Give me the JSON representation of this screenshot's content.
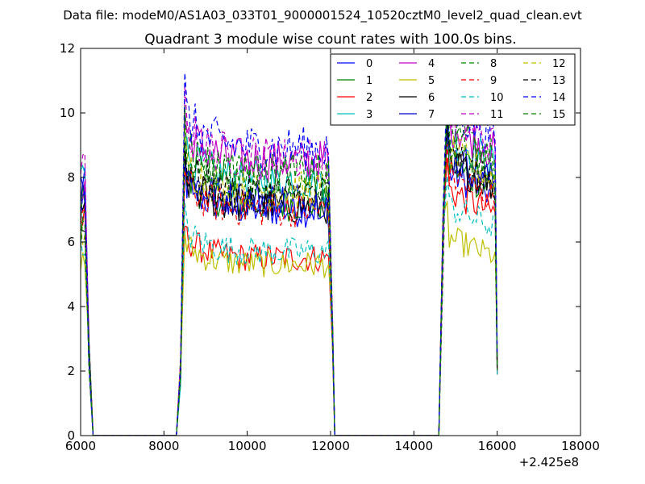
{
  "suptitle": "Data file: modeM0/AS1A03_033T01_9000001524_10520cztM0_level2_quad_clean.evt",
  "chart_data": {
    "type": "line",
    "title": "Quadrant 3 module wise count rates with 100.0s bins.",
    "xlabel": "",
    "ylabel": "",
    "x_offset_label": "+2.425e8",
    "xlim": [
      6000,
      18000
    ],
    "ylim": [
      0,
      12
    ],
    "xticks": [
      6000,
      8000,
      10000,
      12000,
      14000,
      16000,
      18000
    ],
    "yticks": [
      0,
      2,
      4,
      6,
      8,
      10,
      12
    ],
    "xtick_labels": [
      "6000",
      "8000",
      "10000",
      "12000",
      "14000",
      "16000",
      "18000"
    ],
    "ytick_labels": [
      "0",
      "2",
      "4",
      "6",
      "8",
      "10",
      "12"
    ],
    "grid": false,
    "legend_position": "top-right",
    "segments": [
      {
        "start": 6000,
        "end": 6100
      },
      {
        "start": 8500,
        "end": 12000
      },
      {
        "start": 14700,
        "end": 16000
      }
    ],
    "series": [
      {
        "name": "0",
        "color": "#0000ff",
        "dash": "solid",
        "levels": [
          8.2,
          7.0,
          8.3
        ]
      },
      {
        "name": "1",
        "color": "#008000",
        "dash": "solid",
        "levels": [
          7.5,
          7.2,
          8.5
        ]
      },
      {
        "name": "2",
        "color": "#ff0000",
        "dash": "solid",
        "levels": [
          6.9,
          5.5,
          7.7
        ]
      },
      {
        "name": "3",
        "color": "#00bfbf",
        "dash": "solid",
        "levels": [
          8.3,
          7.9,
          9.4
        ]
      },
      {
        "name": "4",
        "color": "#bf00bf",
        "dash": "solid",
        "levels": [
          8.0,
          8.5,
          9.8
        ]
      },
      {
        "name": "5",
        "color": "#bfbf00",
        "dash": "solid",
        "levels": [
          5.5,
          5.3,
          6.2
        ]
      },
      {
        "name": "6",
        "color": "#000000",
        "dash": "solid",
        "levels": [
          7.3,
          7.1,
          8.6
        ]
      },
      {
        "name": "7",
        "color": "#0000cc",
        "dash": "solid",
        "levels": [
          7.8,
          7.3,
          8.8
        ]
      },
      {
        "name": "8",
        "color": "#008000",
        "dash": "dashed",
        "levels": [
          7.0,
          8.0,
          9.6
        ]
      },
      {
        "name": "9",
        "color": "#ff0000",
        "dash": "dashed",
        "levels": [
          6.7,
          7.0,
          8.2
        ]
      },
      {
        "name": "10",
        "color": "#00bfbf",
        "dash": "dashed",
        "levels": [
          5.9,
          5.7,
          7.2
        ]
      },
      {
        "name": "11",
        "color": "#bf00bf",
        "dash": "dashed",
        "levels": [
          8.4,
          8.6,
          10.0
        ]
      },
      {
        "name": "12",
        "color": "#bfbf00",
        "dash": "dashed",
        "levels": [
          6.4,
          7.6,
          8.9
        ]
      },
      {
        "name": "13",
        "color": "#000000",
        "dash": "dashed",
        "levels": [
          6.6,
          7.5,
          8.7
        ]
      },
      {
        "name": "14",
        "color": "#0000ff",
        "dash": "dashed",
        "levels": [
          7.7,
          8.9,
          10.3
        ]
      },
      {
        "name": "15",
        "color": "#008000",
        "dash": "dashed",
        "levels": [
          6.6,
          8.1,
          9.3
        ]
      }
    ]
  }
}
